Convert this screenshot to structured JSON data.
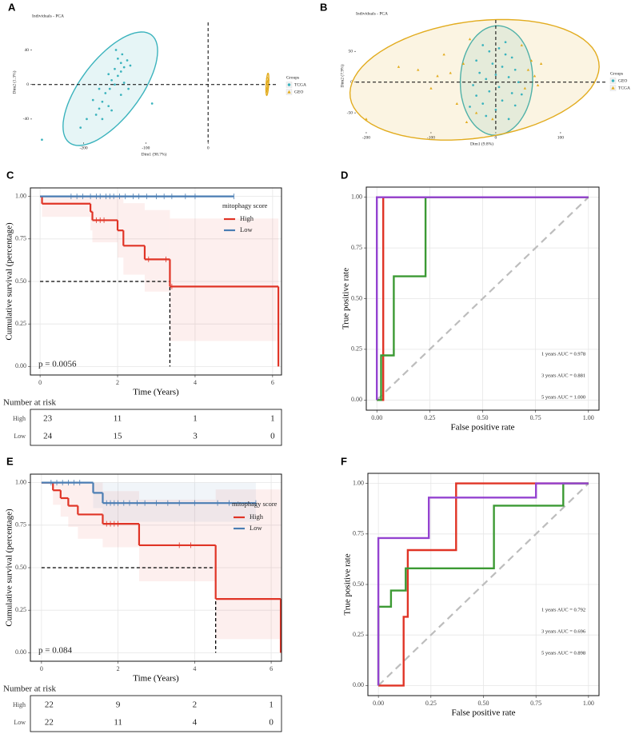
{
  "chart_data": [
    {
      "type": "scatter",
      "label": "A",
      "title": "Individuals - PCA",
      "x_label": "Dim1 (98.7%)",
      "y_label": "Dim2 (1.3%)",
      "xlim": [
        -283,
        109
      ],
      "ylim": [
        -67,
        72
      ],
      "xticks": [
        -200,
        -100,
        0
      ],
      "yticks": [
        -40,
        0,
        40
      ],
      "grid": false,
      "legend": "right",
      "legend_title": "Groups",
      "series": [
        {
          "name": "TCGA",
          "color": "#3bb3bd",
          "marker": "circle",
          "x": [
            -205,
            -195,
            -180,
            -175,
            -170,
            -160,
            -165,
            -158,
            -150,
            -155,
            -145,
            -140,
            -150,
            -135,
            -140,
            -130,
            -145,
            -155,
            -170,
            -185,
            -140,
            -135,
            -125,
            -148,
            -138,
            -160,
            -267,
            -90,
            -128,
            -175
          ],
          "values": [
            -50,
            -40,
            -35,
            -28,
            -20,
            -25,
            -10,
            -5,
            0,
            5,
            10,
            15,
            18,
            20,
            25,
            28,
            30,
            -30,
            -40,
            -18,
            -12,
            2,
            22,
            40,
            35,
            12,
            -64,
            -22,
            -5,
            -5
          ]
        },
        {
          "name": "GEO",
          "color": "#e2ac1f",
          "marker": "triangle",
          "x": [
            94,
            95,
            96,
            95,
            97,
            94,
            96,
            95,
            96,
            95
          ],
          "values": [
            -8,
            -4,
            0,
            3,
            6,
            1,
            -2,
            8,
            4,
            -6
          ]
        }
      ]
    },
    {
      "type": "scatter",
      "label": "B",
      "title": "Individuals - PCA",
      "x_label": "Dim1 (9.8%)",
      "y_label": "Dim2 (7.9%)",
      "xlim": [
        -216,
        173
      ],
      "ylim": [
        -81,
        101
      ],
      "xticks": [
        -200,
        -100,
        0,
        100
      ],
      "yticks": [
        -50,
        0,
        50
      ],
      "grid": false,
      "legend": "right",
      "legend_title": "Groups",
      "series": [
        {
          "name": "GEO",
          "color": "#3bb3bd",
          "marker": "circle",
          "x": [
            -20,
            -10,
            5,
            15,
            25,
            -30,
            -5,
            10,
            30,
            -25,
            0,
            20,
            -15,
            35,
            -35,
            5,
            -10,
            25,
            -30,
            10,
            -20,
            30,
            0,
            -15,
            20,
            40,
            -40,
            15
          ],
          "values": [
            60,
            50,
            55,
            45,
            40,
            35,
            30,
            25,
            20,
            15,
            12,
            8,
            5,
            0,
            -5,
            -8,
            -15,
            -18,
            -22,
            -30,
            -35,
            -38,
            -45,
            -55,
            -60,
            -20,
            -40,
            65
          ]
        },
        {
          "name": "TCGA",
          "color": "#e2ac1f",
          "marker": "triangle",
          "x": [
            -200,
            -150,
            -120,
            -100,
            -80,
            -70,
            -60,
            -50,
            -45,
            -40,
            -30,
            45,
            50,
            55,
            60,
            65,
            70,
            -90,
            -5,
            40
          ],
          "values": [
            -60,
            25,
            20,
            -10,
            45,
            15,
            -35,
            30,
            -65,
            70,
            -50,
            -10,
            20,
            35,
            10,
            -5,
            30,
            10,
            -60,
            60
          ]
        }
      ]
    },
    {
      "type": "survival",
      "label": "C",
      "x_label": "Time (Years)",
      "y_label": "Cumulative survival (percentage)",
      "xlim": [
        -0.25,
        6.23
      ],
      "ylim": [
        -0.05,
        1.05
      ],
      "xticks": [
        0,
        2,
        4,
        6
      ],
      "yticks": [
        {
          "value": 0,
          "label": "0.00"
        },
        {
          "value": 0.25,
          "label": "0.25"
        },
        {
          "value": 0.5,
          "label": "0.50"
        },
        {
          "value": 0.75,
          "label": "0.75"
        },
        {
          "value": 1,
          "label": "1.00"
        }
      ],
      "grid": true,
      "legend": "upper right",
      "legend_title": "mitophagy score",
      "annotation": "p = 0.0056",
      "series": [
        {
          "name": "High",
          "color": "#e03426",
          "x": [
            0,
            0.05,
            1.3,
            1.35,
            2.0,
            2.15,
            2.7,
            3.35,
            6.15
          ],
          "values": [
            1,
            0.957,
            0.91,
            0.86,
            0.8,
            0.71,
            0.63,
            0.47,
            0
          ],
          "ci_lower": [
            1,
            0.88,
            0.8,
            0.73,
            0.64,
            0.54,
            0.44,
            0.15,
            null
          ],
          "ci_upper": [
            1,
            1,
            1,
            1,
            1,
            0.96,
            0.92,
            0.87,
            null
          ],
          "censored": [
            1.45,
            1.55,
            1.65,
            2.8,
            3.25,
            3.4
          ]
        },
        {
          "name": "Low",
          "color": "#4a7db3",
          "x": [
            0
          ],
          "values": [
            1
          ],
          "censored": [
            0.8,
            0.95,
            1.1,
            1.3,
            1.45,
            1.55,
            1.7,
            1.8,
            1.9,
            2.05,
            2.2,
            2.4,
            2.55,
            2.75,
            3.0,
            3.2,
            3.4,
            3.75,
            4.0,
            5.0
          ]
        }
      ],
      "risk_table": {
        "title": "Number at risk",
        "rows": [
          {
            "name": "High",
            "color": "#e03426",
            "values": [
              23,
              11,
              1,
              1
            ]
          },
          {
            "name": "Low",
            "color": "#4a7db3",
            "values": [
              24,
              15,
              3,
              0
            ]
          }
        ]
      }
    },
    {
      "type": "roc",
      "label": "D",
      "x_label": "False positive rate",
      "y_label": "True positive rate",
      "xlim": [
        -0.05,
        1.05
      ],
      "ylim": [
        -0.05,
        1.05
      ],
      "xticks": [
        {
          "value": 0,
          "label": "0.00"
        },
        {
          "value": 0.25,
          "label": "0.25"
        },
        {
          "value": 0.5,
          "label": "0.50"
        },
        {
          "value": 0.75,
          "label": "0.75"
        },
        {
          "value": 1,
          "label": "1.00"
        }
      ],
      "yticks": [
        {
          "value": 0,
          "label": "0.00"
        },
        {
          "value": 0.25,
          "label": "0.25"
        },
        {
          "value": 0.5,
          "label": "0.50"
        },
        {
          "value": 0.75,
          "label": "0.75"
        },
        {
          "value": 1,
          "label": "1.00"
        }
      ],
      "grid": true,
      "legend": "lower right",
      "series": [
        {
          "name": "1 years AUC = 0.978",
          "color": "#e03426",
          "x": [
            0,
            0.03,
            0.03,
            1
          ],
          "values": [
            0,
            0,
            1,
            1
          ]
        },
        {
          "name": "3 years AUC = 0.881",
          "color": "#3c9a34",
          "x": [
            0,
            0.02,
            0.02,
            0.08,
            0.08,
            0.23,
            0.23,
            1
          ],
          "values": [
            0,
            0,
            0.22,
            0.22,
            0.61,
            0.61,
            1,
            1
          ]
        },
        {
          "name": "5 years AUC = 1.000",
          "color": "#9443d0",
          "x": [
            0,
            0,
            1
          ],
          "values": [
            0,
            1,
            1
          ]
        }
      ]
    },
    {
      "type": "survival",
      "label": "E",
      "x_label": "Time (Years)",
      "y_label": "Cumulative survival (percentage)",
      "xlim": [
        -0.29,
        6.27
      ],
      "ylim": [
        -0.05,
        1.05
      ],
      "xticks": [
        0,
        2,
        4,
        6
      ],
      "yticks": [
        {
          "value": 0,
          "label": "0.00"
        },
        {
          "value": 0.25,
          "label": "0.25"
        },
        {
          "value": 0.5,
          "label": "0.50"
        },
        {
          "value": 0.75,
          "label": "0.75"
        },
        {
          "value": 1,
          "label": "1.00"
        }
      ],
      "grid": true,
      "legend": "upper right",
      "legend_title": "mitophagy score",
      "annotation": "p = 0.084",
      "series": [
        {
          "name": "High",
          "color": "#e03426",
          "x": [
            0,
            0.3,
            0.5,
            0.7,
            0.95,
            1.6,
            2.55,
            4.55,
            6.25
          ],
          "values": [
            1,
            0.955,
            0.909,
            0.864,
            0.813,
            0.758,
            0.632,
            0.316,
            0
          ],
          "ci_lower": [
            1,
            0.87,
            0.8,
            0.74,
            0.67,
            0.62,
            0.42,
            0.08,
            null
          ],
          "ci_upper": [
            1,
            1,
            1,
            1,
            1,
            0.95,
            0.9,
            0.96,
            null
          ],
          "censored": [
            1.7,
            1.8,
            1.9,
            2.0,
            3.6,
            3.9
          ]
        },
        {
          "name": "Low",
          "color": "#4a7db3",
          "x": [
            0,
            1.35,
            1.6
          ],
          "values": [
            1,
            0.94,
            0.88
          ],
          "ci_lower": [
            1,
            0.85,
            0.77
          ],
          "ci_upper": [
            1,
            1,
            1
          ],
          "censored": [
            0.25,
            0.4,
            0.55,
            0.7,
            0.85,
            1.0,
            1.7,
            1.8,
            1.9,
            2.0,
            2.15,
            2.3,
            2.5,
            2.7,
            3.0,
            3.3,
            3.6,
            4.0,
            4.6,
            4.9,
            5.6
          ]
        }
      ],
      "risk_table": {
        "title": "Number at risk",
        "rows": [
          {
            "name": "High",
            "color": "#e03426",
            "values": [
              22,
              9,
              2,
              1
            ]
          },
          {
            "name": "Low",
            "color": "#4a7db3",
            "values": [
              22,
              11,
              4,
              0
            ]
          }
        ]
      }
    },
    {
      "type": "roc",
      "label": "F",
      "x_label": "False positive rate",
      "y_label": "True positive rate",
      "xlim": [
        -0.05,
        1.05
      ],
      "ylim": [
        -0.05,
        1.05
      ],
      "xticks": [
        {
          "value": 0,
          "label": "0.00"
        },
        {
          "value": 0.25,
          "label": "0.25"
        },
        {
          "value": 0.5,
          "label": "0.50"
        },
        {
          "value": 0.75,
          "label": "0.75"
        },
        {
          "value": 1,
          "label": "1.00"
        }
      ],
      "yticks": [
        {
          "value": 0,
          "label": "0.00"
        },
        {
          "value": 0.25,
          "label": "0.25"
        },
        {
          "value": 0.5,
          "label": "0.50"
        },
        {
          "value": 0.75,
          "label": "0.75"
        },
        {
          "value": 1,
          "label": "1.00"
        }
      ],
      "grid": true,
      "legend": "lower right",
      "series": [
        {
          "name": "1 years AUC = 0.792",
          "color": "#e03426",
          "x": [
            0,
            0.12,
            0.12,
            0.14,
            0.14,
            0.37,
            0.37,
            1
          ],
          "values": [
            0,
            0,
            0.34,
            0.34,
            0.67,
            0.67,
            1,
            1
          ]
        },
        {
          "name": "3 years AUC = 0.696",
          "color": "#3c9a34",
          "x": [
            0,
            0,
            0.06,
            0.06,
            0.13,
            0.13,
            0.55,
            0.55,
            0.88,
            0.88,
            1
          ],
          "values": [
            0,
            0.39,
            0.39,
            0.47,
            0.47,
            0.58,
            0.58,
            0.89,
            0.89,
            1,
            1
          ]
        },
        {
          "name": "5 years AUC = 0.898",
          "color": "#9443d0",
          "x": [
            0,
            0,
            0.24,
            0.24,
            0.75,
            0.75,
            1
          ],
          "values": [
            0,
            0.73,
            0.73,
            0.93,
            0.93,
            1,
            1
          ]
        }
      ]
    }
  ]
}
